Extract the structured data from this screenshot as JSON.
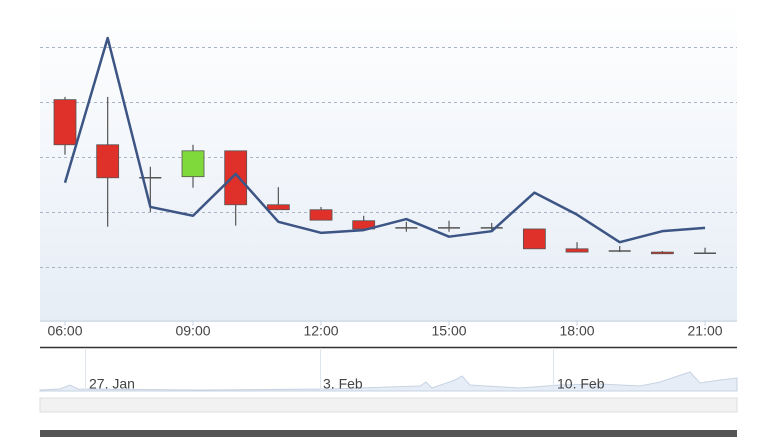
{
  "chart_data": {
    "type": "candlestick",
    "categories": [
      "06:00",
      null,
      null,
      "09:00",
      null,
      null,
      "12:00",
      null,
      null,
      "15:00",
      null,
      null,
      "18:00",
      null,
      null,
      "21:00"
    ],
    "open": [
      4.04,
      3.22,
      2.62,
      2.64,
      3.11,
      2.13,
      2.04,
      1.84,
      1.71,
      1.71,
      1.69,
      1.69,
      1.33,
      1.29,
      1.27,
      1.25
    ],
    "high": [
      4.09,
      4.09,
      2.82,
      3.22,
      3.11,
      2.45,
      2.09,
      1.93,
      1.82,
      1.84,
      1.8,
      1.69,
      1.45,
      1.38,
      1.29,
      1.35
    ],
    "low": [
      3.04,
      1.73,
      2.0,
      2.44,
      1.75,
      2.04,
      1.85,
      1.69,
      1.64,
      1.64,
      1.64,
      1.33,
      1.27,
      1.27,
      1.24,
      1.24
    ],
    "close": [
      3.22,
      2.62,
      2.62,
      3.11,
      2.13,
      2.04,
      1.85,
      1.69,
      1.69,
      1.71,
      1.71,
      1.33,
      1.27,
      1.29,
      1.24,
      1.25
    ],
    "line_values": [
      2.53,
      5.16,
      2.09,
      1.93,
      2.69,
      1.82,
      1.62,
      1.67,
      1.87,
      1.55,
      1.65,
      2.35,
      1.95,
      1.45,
      1.65,
      1.71
    ],
    "up_color": "#80d93a",
    "down_color": "#e0302a",
    "line_color": "#3d5585",
    "ylim": [
      0,
      5.85
    ],
    "yticks": [
      1,
      2,
      3,
      4,
      5
    ],
    "grid": true,
    "navigator_labels": [
      "27. Jan",
      "3. Feb",
      "10. Feb"
    ]
  }
}
